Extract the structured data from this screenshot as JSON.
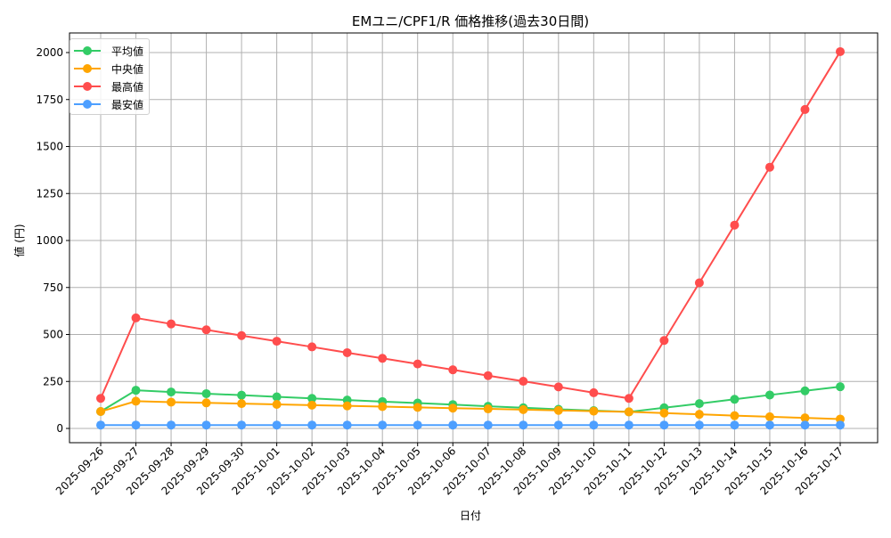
{
  "chart_data": {
    "type": "line",
    "title": "EMユニ/CPF1/R 価格推移(過去30日間)",
    "xlabel": "日付",
    "ylabel": "値 (円)",
    "ylim": [
      -75,
      2100
    ],
    "yticks": [
      0,
      250,
      500,
      750,
      1000,
      1250,
      1500,
      1750,
      2000
    ],
    "grid": true,
    "legend_position": "upper left",
    "x": [
      "2025-09-26",
      "2025-09-27",
      "2025-09-28",
      "2025-09-29",
      "2025-09-30",
      "2025-10-01",
      "2025-10-02",
      "2025-10-03",
      "2025-10-04",
      "2025-10-05",
      "2025-10-06",
      "2025-10-07",
      "2025-10-08",
      "2025-10-09",
      "2025-10-10",
      "2025-10-11",
      "2025-10-12",
      "2025-10-13",
      "2025-10-14",
      "2025-10-15",
      "2025-10-16",
      "2025-10-17"
    ],
    "series": [
      {
        "name": "平均値",
        "color": "#33cc66",
        "values": [
          90,
          203,
          194,
          185,
          177,
          168,
          160,
          151,
          143,
          135,
          127,
          118,
          110,
          102,
          95,
          88,
          110,
          132,
          155,
          178,
          200,
          222
        ]
      },
      {
        "name": "中央値",
        "color": "#ffa500",
        "values": [
          90,
          145,
          140,
          136,
          132,
          128,
          124,
          120,
          116,
          112,
          108,
          104,
          100,
          96,
          92,
          88,
          82,
          75,
          68,
          62,
          56,
          50
        ]
      },
      {
        "name": "最高値",
        "color": "#ff4d4d",
        "values": [
          160,
          588,
          556,
          525,
          494,
          464,
          434,
          403,
          373,
          343,
          312,
          281,
          251,
          221,
          190,
          160,
          468,
          775,
          1082,
          1390,
          1697,
          2005
        ]
      },
      {
        "name": "最安値",
        "color": "#4d9fff",
        "values": [
          18,
          18,
          18,
          18,
          18,
          18,
          18,
          18,
          18,
          18,
          18,
          18,
          18,
          18,
          18,
          18,
          18,
          18,
          18,
          18,
          18,
          18
        ]
      }
    ]
  }
}
